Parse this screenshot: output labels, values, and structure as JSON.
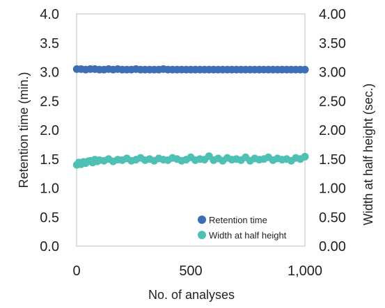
{
  "chart_data": {
    "type": "scatter",
    "xlabel": "No. of analyses",
    "ylabel_left": "Retention time (min.)",
    "ylabel_right": "Width at half height (sec.)",
    "xlim": [
      0,
      1000
    ],
    "ylim_left": [
      0.0,
      4.0
    ],
    "ylim_right": [
      0.0,
      4.0
    ],
    "x_ticks": [
      "0",
      "500",
      "1,000"
    ],
    "y_left_ticks": [
      "0.0",
      "0.5",
      "1.0",
      "1.5",
      "2.0",
      "2.5",
      "3.0",
      "3.5",
      "4.0"
    ],
    "y_right_ticks": [
      "0.00",
      "0.50",
      "1.00",
      "1.50",
      "2.00",
      "2.50",
      "3.00",
      "3.50",
      "4.00"
    ],
    "grid": false,
    "legend_position": "bottom-right",
    "series": [
      {
        "name": "Retention time",
        "axis": "left",
        "color": "#3d6eb5",
        "x": [
          1,
          20,
          40,
          60,
          80,
          100,
          120,
          140,
          160,
          180,
          200,
          220,
          240,
          260,
          280,
          300,
          320,
          340,
          360,
          380,
          400,
          420,
          440,
          460,
          480,
          500,
          520,
          540,
          560,
          580,
          600,
          620,
          640,
          660,
          680,
          700,
          720,
          740,
          760,
          780,
          800,
          820,
          840,
          860,
          880,
          900,
          920,
          940,
          960,
          980,
          1000
        ],
        "y": [
          3.05,
          3.05,
          3.04,
          3.05,
          3.05,
          3.04,
          3.04,
          3.05,
          3.04,
          3.05,
          3.04,
          3.04,
          3.04,
          3.05,
          3.04,
          3.04,
          3.04,
          3.04,
          3.04,
          3.05,
          3.04,
          3.04,
          3.04,
          3.04,
          3.04,
          3.04,
          3.04,
          3.04,
          3.04,
          3.04,
          3.04,
          3.04,
          3.04,
          3.04,
          3.04,
          3.04,
          3.04,
          3.04,
          3.04,
          3.04,
          3.04,
          3.04,
          3.04,
          3.04,
          3.04,
          3.04,
          3.04,
          3.04,
          3.04,
          3.04,
          3.04
        ]
      },
      {
        "name": "Width at half height",
        "axis": "right",
        "color": "#4fc1b4",
        "x": [
          1,
          10,
          20,
          30,
          40,
          50,
          60,
          70,
          80,
          90,
          100,
          120,
          140,
          160,
          180,
          200,
          220,
          240,
          260,
          280,
          300,
          320,
          340,
          360,
          380,
          400,
          420,
          440,
          460,
          480,
          500,
          520,
          540,
          560,
          580,
          600,
          620,
          640,
          660,
          680,
          700,
          720,
          740,
          760,
          780,
          800,
          820,
          840,
          860,
          880,
          900,
          920,
          940,
          960,
          980,
          1000
        ],
        "y": [
          1.4,
          1.44,
          1.41,
          1.45,
          1.43,
          1.46,
          1.47,
          1.44,
          1.49,
          1.46,
          1.48,
          1.47,
          1.5,
          1.46,
          1.49,
          1.48,
          1.51,
          1.47,
          1.49,
          1.52,
          1.48,
          1.5,
          1.47,
          1.51,
          1.49,
          1.48,
          1.52,
          1.5,
          1.47,
          1.49,
          1.53,
          1.48,
          1.5,
          1.49,
          1.55,
          1.48,
          1.51,
          1.47,
          1.52,
          1.49,
          1.5,
          1.48,
          1.53,
          1.47,
          1.51,
          1.49,
          1.5,
          1.53,
          1.48,
          1.51,
          1.49,
          1.5,
          1.47,
          1.52,
          1.5,
          1.54
        ]
      }
    ]
  }
}
